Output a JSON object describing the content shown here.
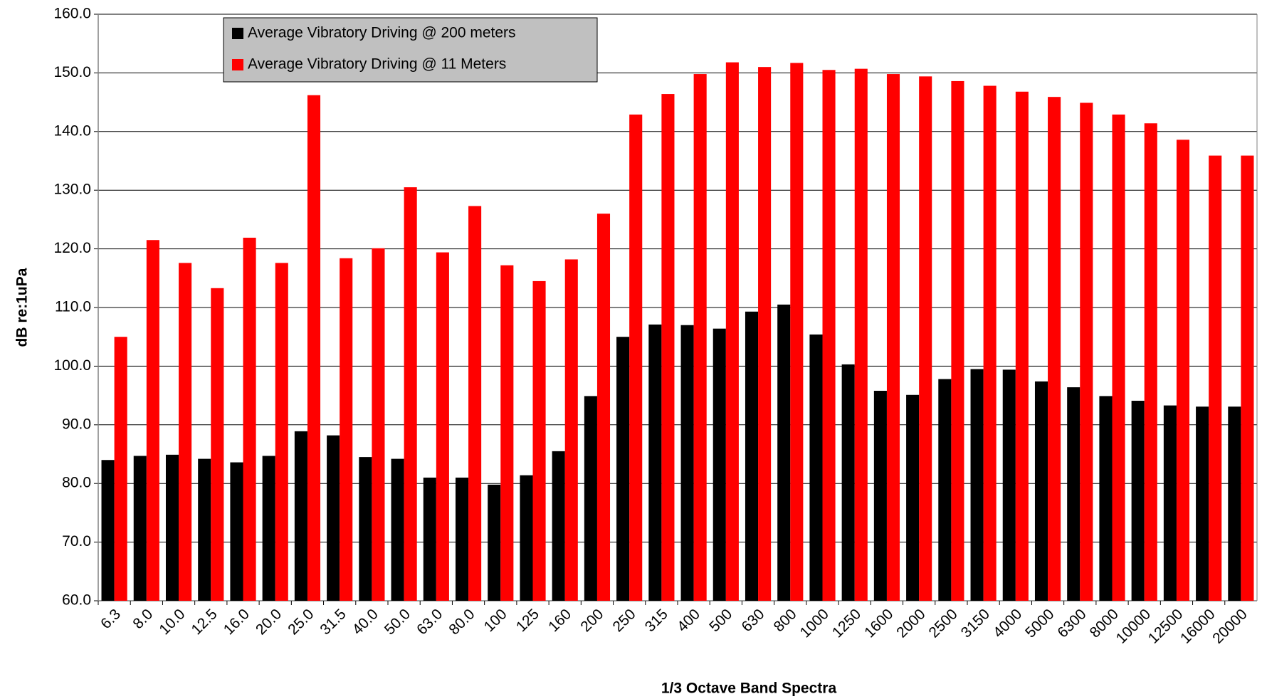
{
  "chart_data": {
    "type": "bar",
    "x_label": "1/3 Octave Band Spectra",
    "y_label": "dB re:1uPa",
    "categories": [
      "6.3",
      "8.0",
      "10.0",
      "12.5",
      "16.0",
      "20.0",
      "25.0",
      "31.5",
      "40.0",
      "50.0",
      "63.0",
      "80.0",
      "100",
      "125",
      "160",
      "200",
      "250",
      "315",
      "400",
      "500",
      "630",
      "800",
      "1000",
      "1250",
      "1600",
      "2000",
      "2500",
      "3150",
      "4000",
      "5000",
      "6300",
      "8000",
      "10000",
      "12500",
      "16000",
      "20000"
    ],
    "series": [
      {
        "name": "Average Vibratory Driving @ 200 meters",
        "color": "#000000",
        "values": [
          84.0,
          84.7,
          84.9,
          84.2,
          83.6,
          84.7,
          88.9,
          88.2,
          84.5,
          84.2,
          81.0,
          81.0,
          79.8,
          81.4,
          85.5,
          94.9,
          105.0,
          107.1,
          107.0,
          106.4,
          109.3,
          110.5,
          105.4,
          100.3,
          95.8,
          95.1,
          97.8,
          99.5,
          99.4,
          97.4,
          96.4,
          94.9,
          94.1,
          93.3,
          93.1,
          93.1
        ]
      },
      {
        "name": "Average Vibratory Driving @ 11 Meters",
        "color": "#ff0000",
        "values": [
          105.0,
          121.5,
          117.6,
          113.3,
          121.9,
          117.6,
          146.2,
          118.4,
          120.1,
          130.5,
          119.4,
          127.3,
          117.2,
          114.5,
          118.2,
          126.0,
          142.9,
          146.4,
          149.8,
          151.8,
          151.0,
          151.7,
          150.5,
          150.7,
          149.8,
          149.4,
          148.6,
          147.8,
          146.8,
          145.9,
          144.9,
          142.9,
          141.4,
          138.6,
          135.9,
          135.9
        ]
      }
    ],
    "ylim": [
      60,
      160
    ],
    "yticks": [
      {
        "value": 60,
        "label": "60.0"
      },
      {
        "value": 70,
        "label": "70.0"
      },
      {
        "value": 80,
        "label": "80.0"
      },
      {
        "value": 90,
        "label": "90.0"
      },
      {
        "value": 100,
        "label": "100.0"
      },
      {
        "value": 110,
        "label": "110.0"
      },
      {
        "value": 120,
        "label": "120.0"
      },
      {
        "value": 130,
        "label": "130.0"
      },
      {
        "value": 140,
        "label": "140.0"
      },
      {
        "value": 150,
        "label": "150.0"
      },
      {
        "value": 160,
        "label": "160.0"
      }
    ],
    "grid": true,
    "legend": "top-left"
  }
}
